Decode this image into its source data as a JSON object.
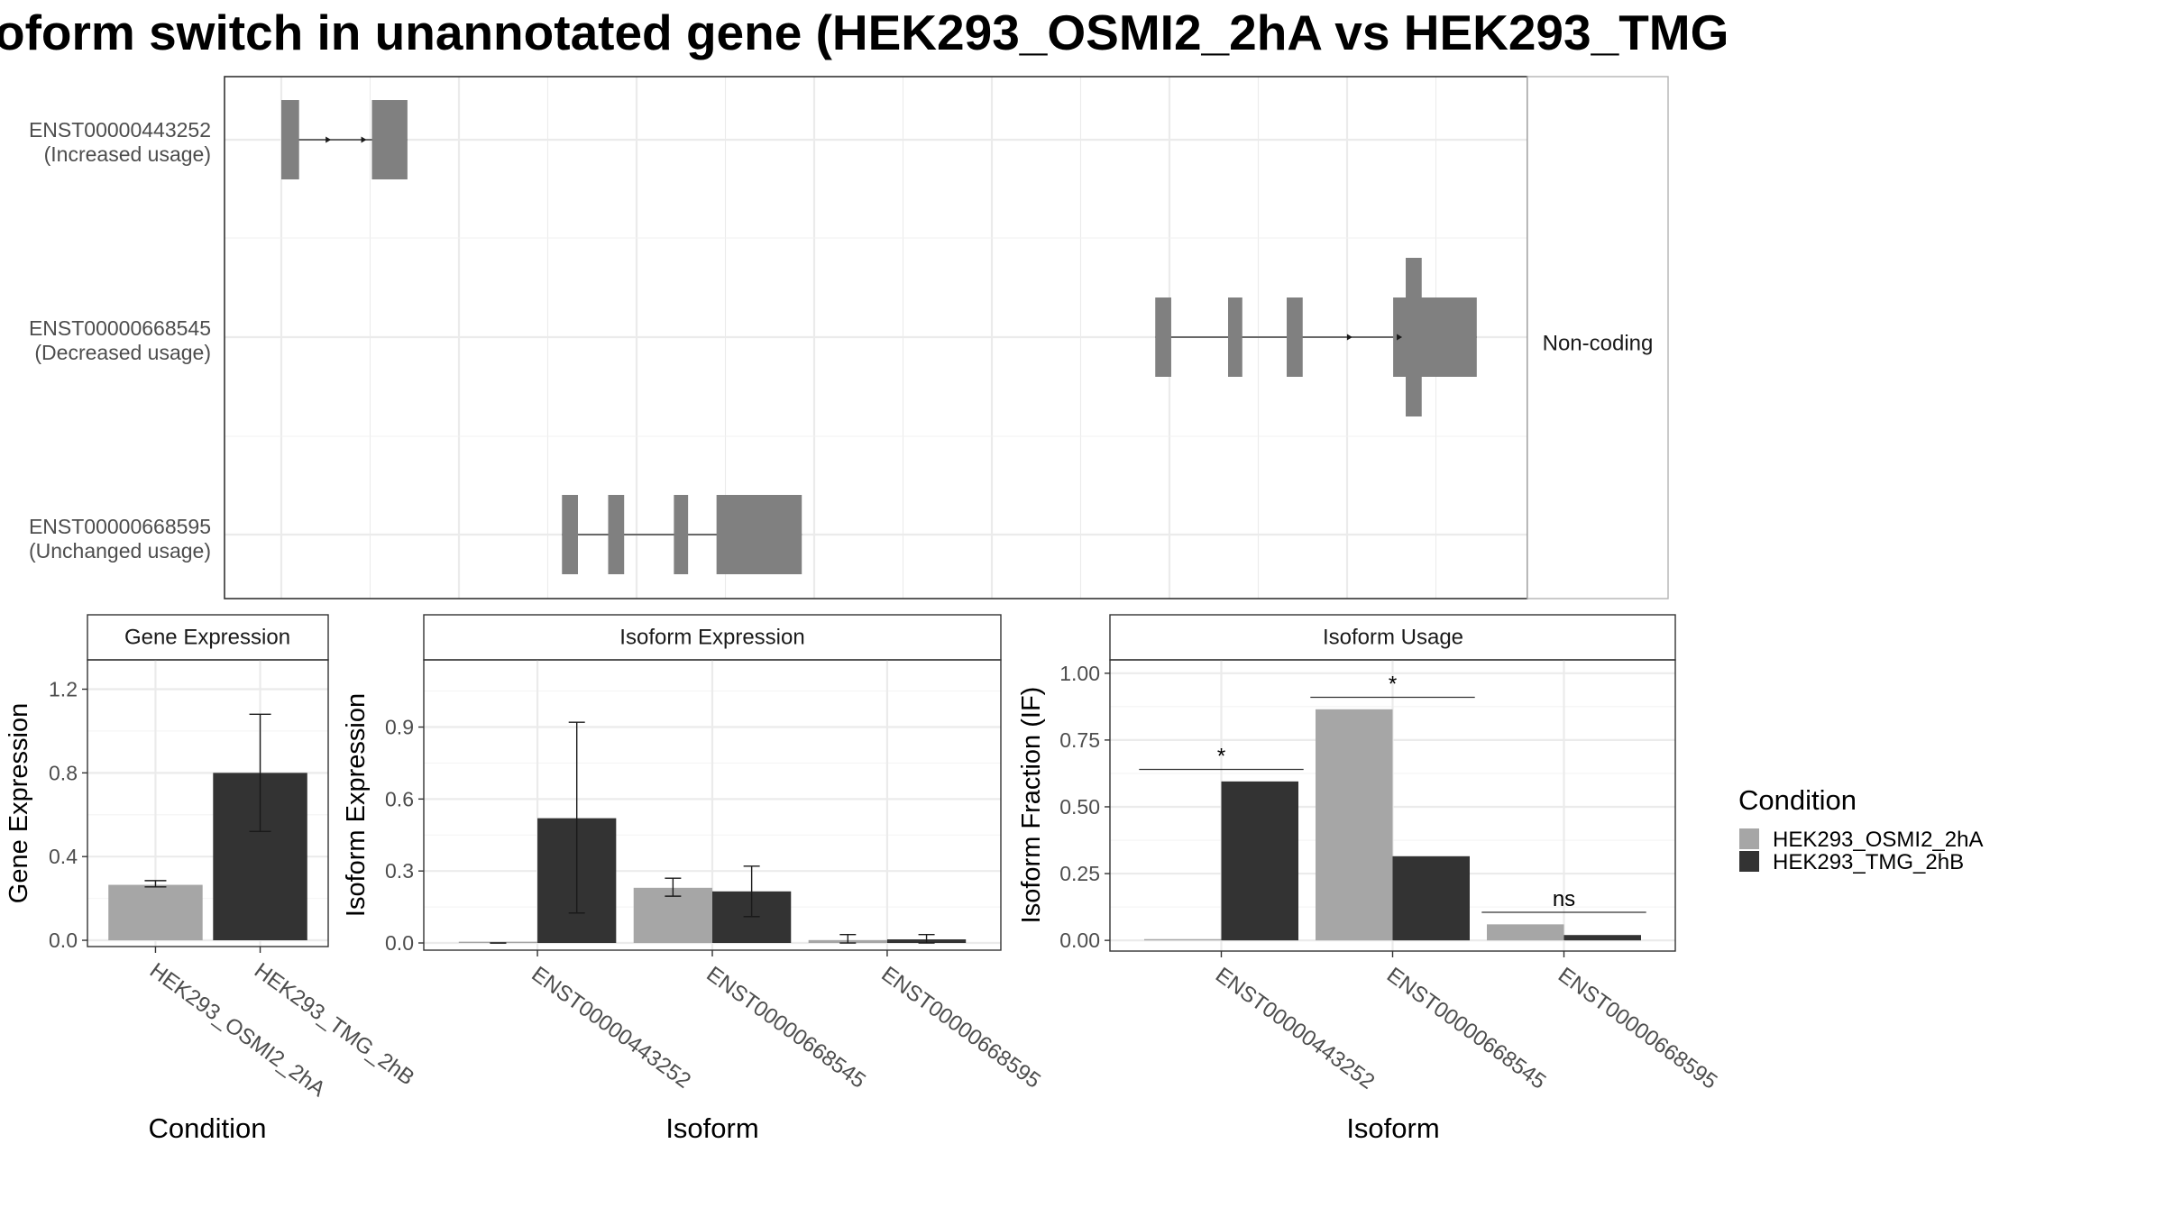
{
  "title": "oform switch in unannotated gene (HEK293_OSMI2_2hA vs HEK293_TMG",
  "chart_data": [
    {
      "type": "gene-structure",
      "coding_label": "Non-coding",
      "isoforms": [
        {
          "id": "ENST00000443252",
          "usage": "(Increased usage)",
          "exons": [
            [
              0.0,
              0.1
            ],
            [
              0.51,
              0.71
            ]
          ],
          "arrows": [
            0.28,
            0.48
          ]
        },
        {
          "id": "ENST00000668545",
          "usage": "(Decreased usage)",
          "exons": [
            [
              4.92,
              5.01
            ],
            [
              5.33,
              5.41
            ],
            [
              5.66,
              5.75
            ],
            [
              6.26,
              6.37
            ]
          ],
          "tall_exon": [
            6.33,
            6.42
          ],
          "wide_exon": [
            6.26,
            6.73
          ],
          "arrows": [
            6.03,
            6.31
          ]
        },
        {
          "id": "ENST00000668595",
          "usage": "(Unchanged usage)",
          "exons": [
            [
              1.58,
              1.67
            ],
            [
              1.84,
              1.93
            ],
            [
              2.21,
              2.29
            ],
            [
              2.45,
              2.93
            ]
          ],
          "arrows": []
        }
      ]
    },
    {
      "type": "bar",
      "title": "Gene Expression",
      "xlabel": "Condition",
      "ylabel": "Gene Expression",
      "ylim": [
        -0.03,
        1.34
      ],
      "yticks": [
        "0.0",
        "0.4",
        "0.8",
        "1.2"
      ],
      "ytick_values": [
        0,
        0.4,
        0.8,
        1.2
      ],
      "categories": [
        "HEK293_OSMI2_2hA",
        "HEK293_TMG_2hB"
      ],
      "series": [
        {
          "name": "HEK293_OSMI2_2hA",
          "values": [
            0.265,
            null
          ],
          "err_low": [
            0.255,
            null
          ],
          "err_high": [
            0.285,
            null
          ]
        },
        {
          "name": "HEK293_TMG_2hB",
          "values": [
            null,
            0.8
          ],
          "err_low": [
            null,
            0.52
          ],
          "err_high": [
            null,
            1.08
          ]
        }
      ]
    },
    {
      "type": "bar",
      "title": "Isoform Expression",
      "xlabel": "Isoform",
      "ylabel": "Isoform Expression",
      "ylim": [
        -0.03,
        1.18
      ],
      "yticks": [
        "0.0",
        "0.3",
        "0.6",
        "0.9"
      ],
      "ytick_values": [
        0,
        0.3,
        0.6,
        0.9
      ],
      "categories": [
        "ENST00000443252",
        "ENST00000668545",
        "ENST00000668595"
      ],
      "series": [
        {
          "name": "HEK293_OSMI2_2hA",
          "values": [
            0.0,
            0.23,
            0.012
          ],
          "err_low": [
            0.0,
            0.195,
            0.0
          ],
          "err_high": [
            0.0,
            0.27,
            0.035
          ]
        },
        {
          "name": "HEK293_TMG_2hB",
          "values": [
            0.52,
            0.215,
            0.015
          ],
          "err_low": [
            0.125,
            0.11,
            0.0
          ],
          "err_high": [
            0.92,
            0.32,
            0.035
          ]
        }
      ]
    },
    {
      "type": "bar",
      "title": "Isoform Usage",
      "xlabel": "Isoform",
      "ylabel": "Isoform Fraction (IF)",
      "ylim": [
        -0.04,
        1.05
      ],
      "yticks": [
        "0.00",
        "0.25",
        "0.50",
        "0.75",
        "1.00"
      ],
      "ytick_values": [
        0,
        0.25,
        0.5,
        0.75,
        1.0
      ],
      "categories": [
        "ENST00000443252",
        "ENST00000668545",
        "ENST00000668595"
      ],
      "series": [
        {
          "name": "HEK293_OSMI2_2hA",
          "values": [
            0.0,
            0.865,
            0.06
          ]
        },
        {
          "name": "HEK293_TMG_2hB",
          "values": [
            0.595,
            0.315,
            0.02
          ]
        }
      ],
      "significance": [
        {
          "category": 0,
          "label": "*",
          "y": 0.64
        },
        {
          "category": 1,
          "label": "*",
          "y": 0.91
        },
        {
          "category": 2,
          "label": "ns",
          "y": 0.105
        }
      ]
    }
  ],
  "legend": {
    "title": "Condition",
    "placement": "right",
    "items": [
      {
        "label": "HEK293_OSMI2_2hA",
        "color": "#a6a6a6"
      },
      {
        "label": "HEK293_TMG_2hB",
        "color": "#333333"
      }
    ]
  },
  "colors": {
    "condition_a": "#a6a6a6",
    "condition_b": "#333333",
    "exon": "#808080"
  }
}
